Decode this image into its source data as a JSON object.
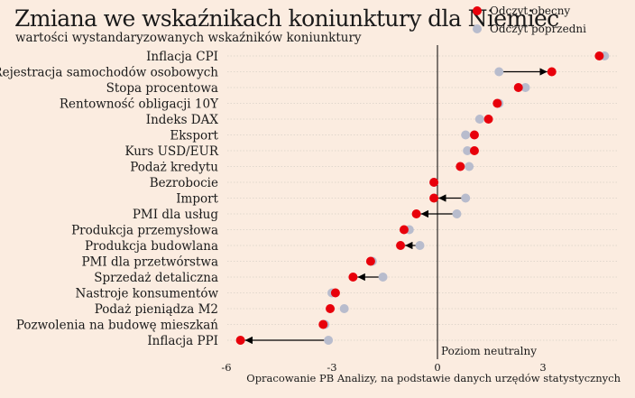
{
  "header": {
    "title": "Zmiana we wskaźnikach koniunktury dla Niemiec",
    "subtitle": "wartości wystandaryzowanych wskaźników koniunktury"
  },
  "legend": [
    {
      "label": "Odczyt obecny",
      "color": "#e8000b"
    },
    {
      "label": "Odczyt poprzedni",
      "color": "#b8bccd"
    }
  ],
  "footer": {
    "source": "Opracowanie PB Analizy, na podstawie danych urzędów statystycznych"
  },
  "chart_data": {
    "type": "dot-arrow",
    "title": "Zmiana we wskaźnikach koniunktury dla Niemiec",
    "subtitle": "wartości wystandaryzowanych wskaźników koniunktury",
    "categories": [
      "Inflacja CPI",
      "Rejestracja samochodów osobowych",
      "Stopa procentowa",
      "Rentowność obligacji 10Y",
      "Indeks DAX",
      "Eksport",
      "Kurs USD/EUR",
      "Podaż kredytu",
      "Bezrobocie",
      "Import",
      "PMI dla usług",
      "Produkcja przemysłowa",
      "Produkcja budowlana",
      "PMI dla przetwórstwa",
      "Sprzedaż detaliczna",
      "Nastroje konsumentów",
      "Podaż pieniądza M2",
      "Pozwolenia na budowę mieszkań",
      "Inflacja PPI"
    ],
    "series": [
      {
        "name": "Odczyt obecny",
        "color": "#e8000b",
        "values": [
          4.6,
          3.25,
          2.3,
          1.7,
          1.45,
          1.05,
          1.05,
          0.65,
          -0.1,
          -0.1,
          -0.6,
          -0.95,
          -1.05,
          -1.9,
          -2.4,
          -2.9,
          -3.05,
          -3.25,
          -5.6
        ]
      },
      {
        "name": "Odczyt poprzedni",
        "color": "#b8bccd",
        "values": [
          4.75,
          1.75,
          2.5,
          1.75,
          1.2,
          0.8,
          0.85,
          0.9,
          -0.1,
          0.8,
          0.55,
          -0.8,
          -0.5,
          -1.85,
          -1.55,
          -3.0,
          -2.65,
          -3.2,
          -3.1
        ]
      }
    ],
    "xlim": [
      -6.3,
      4.9
    ],
    "xticks": [
      -6,
      -3,
      0,
      3
    ],
    "xtick_labels": [
      "-6",
      "-3",
      "0",
      "3"
    ],
    "annotation": "Poziom neutralny",
    "grid": "horizontal dotted"
  }
}
